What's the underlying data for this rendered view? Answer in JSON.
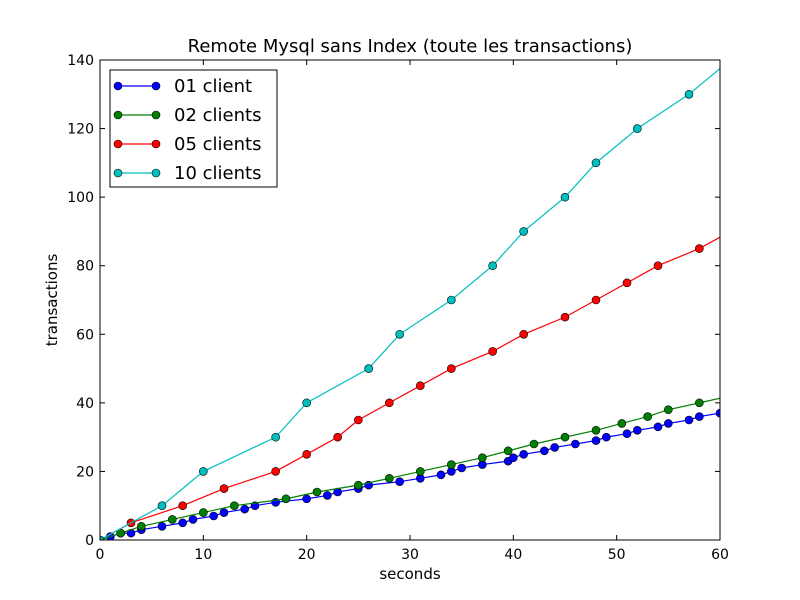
{
  "chart_data": {
    "type": "line",
    "title": "Remote Mysql sans Index (toute les transactions)",
    "xlabel": "seconds",
    "ylabel": "transactions",
    "xlim": [
      0,
      60
    ],
    "ylim": [
      0,
      140
    ],
    "xticks": [
      0,
      10,
      20,
      30,
      40,
      50,
      60
    ],
    "yticks": [
      0,
      20,
      40,
      60,
      80,
      100,
      120,
      140
    ],
    "grid": false,
    "legend_position": "top-left",
    "series": [
      {
        "name": "01 client",
        "color": "#0000ff",
        "x": [
          0.0,
          1.0,
          2.0,
          3.0,
          4.0,
          6.0,
          8.0,
          9.0,
          11.0,
          12.0,
          14.0,
          15.0,
          17.0,
          20.0,
          22.0,
          23.0,
          25.0,
          26.0,
          29.0,
          31.0,
          33.0,
          34.0,
          35.0,
          37.0,
          39.5,
          40.0,
          41.0,
          43.0,
          44.0,
          46.0,
          48.0,
          49.0,
          51.0,
          52.0,
          54.0,
          55.0,
          57.0,
          58.0,
          60.0
        ],
        "y": [
          0,
          1,
          2,
          2,
          3,
          4,
          5,
          6,
          7,
          8,
          9,
          10,
          11,
          12,
          13,
          14,
          15,
          16,
          17,
          18,
          19,
          20,
          21,
          22,
          23,
          24,
          25,
          26,
          27,
          28,
          29,
          30,
          31,
          32,
          33,
          34,
          35,
          36,
          37
        ]
      },
      {
        "name": "02 clients",
        "color": "#008000",
        "x": [
          0.0,
          2.0,
          4.0,
          7.0,
          10.0,
          13.0,
          18.0,
          21.0,
          25.0,
          28.0,
          31.0,
          34.0,
          37.0,
          39.5,
          42.0,
          45.0,
          48.0,
          50.5,
          53.0,
          55.0,
          58.0,
          61.0
        ],
        "y": [
          0,
          2,
          4,
          6,
          8,
          10,
          12,
          14,
          16,
          18,
          20,
          22,
          24,
          26,
          28,
          30,
          32,
          34,
          36,
          38,
          40,
          42
        ]
      },
      {
        "name": "05 clients",
        "color": "#ff0000",
        "x": [
          0.0,
          3.0,
          8.0,
          12.0,
          17.0,
          20.0,
          23.0,
          25.0,
          28.0,
          31.0,
          34.0,
          38.0,
          41.0,
          45.0,
          48.0,
          51.0,
          54.0,
          58.0,
          61.0
        ],
        "y": [
          0,
          5,
          10,
          15,
          20,
          25,
          30,
          35,
          40,
          45,
          50,
          55,
          60,
          65,
          70,
          75,
          80,
          85,
          90
        ]
      },
      {
        "name": "10 clients",
        "color": "#00bfbf",
        "x": [
          0.0,
          6.0,
          10.0,
          17.0,
          20.0,
          26.0,
          29.0,
          34.0,
          38.0,
          41.0,
          45.0,
          48.0,
          52.0,
          57.0,
          61.0
        ],
        "y": [
          0,
          10,
          20,
          30,
          40,
          50,
          60,
          70,
          80,
          90,
          100,
          110,
          120,
          130,
          140
        ]
      }
    ]
  }
}
